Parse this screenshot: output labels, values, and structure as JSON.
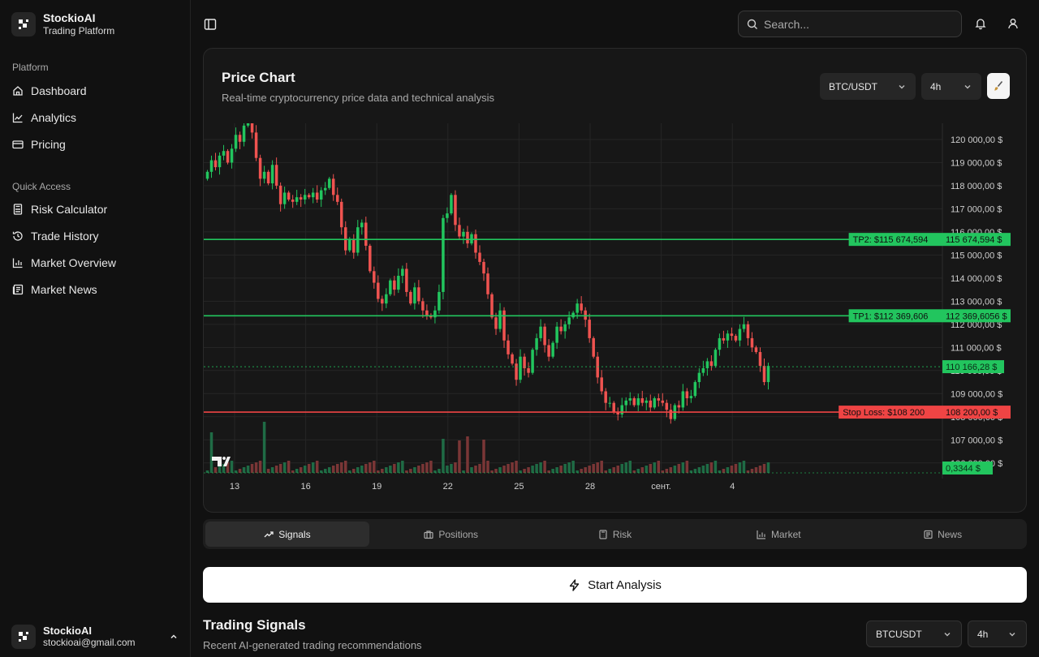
{
  "brand": {
    "name": "StockioAI",
    "subtitle": "Trading Platform"
  },
  "sidebar": {
    "platform_label": "Platform",
    "platform_items": [
      {
        "label": "Dashboard",
        "icon": "home-icon"
      },
      {
        "label": "Analytics",
        "icon": "line-chart-icon"
      },
      {
        "label": "Pricing",
        "icon": "credit-card-icon"
      }
    ],
    "quick_label": "Quick Access",
    "quick_items": [
      {
        "label": "Risk Calculator",
        "icon": "calculator-icon"
      },
      {
        "label": "Trade History",
        "icon": "history-icon"
      },
      {
        "label": "Market Overview",
        "icon": "bar-chart-icon"
      },
      {
        "label": "Market News",
        "icon": "newspaper-icon"
      }
    ],
    "user": {
      "name": "StockioAI",
      "email": "stockioai@gmail.com"
    }
  },
  "topbar": {
    "search_placeholder": "Search..."
  },
  "chart_card": {
    "title": "Price Chart",
    "subtitle": "Real-time cryptocurrency price data and technical analysis",
    "pair": "BTC/USDT",
    "interval": "4h"
  },
  "chart_data": {
    "type": "candlestick",
    "y_ticks": [
      "120 000,00 $",
      "119 000,00 $",
      "118 000,00 $",
      "117 000,00 $",
      "116 000,00 $",
      "115 000,00 $",
      "114 000,00 $",
      "113 000,00 $",
      "112 000,00 $",
      "111 000,00 $",
      "110 000,00 $",
      "109 000,00 $",
      "108 000,00 $",
      "107 000,00 $",
      "106 000,00 $"
    ],
    "y_tick_values": [
      120000,
      119000,
      118000,
      117000,
      116000,
      115000,
      114000,
      113000,
      112000,
      111000,
      110000,
      109000,
      108000,
      107000,
      106000
    ],
    "ylim": [
      105500,
      120700
    ],
    "x_ticks": [
      "13",
      "16",
      "19",
      "22",
      "25",
      "28",
      "сент.",
      "4"
    ],
    "closes": [
      118600,
      119100,
      118800,
      119300,
      119500,
      119000,
      119600,
      120200,
      119900,
      120600,
      121000,
      120300,
      119200,
      118300,
      118600,
      118100,
      118900,
      118000,
      117200,
      117700,
      117400,
      117300,
      117500,
      117400,
      117600,
      117500,
      117700,
      117400,
      117800,
      117900,
      118300,
      117600,
      117300,
      116200,
      115200,
      115700,
      115100,
      116200,
      116400,
      115400,
      114300,
      113800,
      113100,
      112900,
      113300,
      113900,
      113500,
      114100,
      114400,
      113400,
      112900,
      113600,
      113000,
      112600,
      112400,
      112300,
      112600,
      113400,
      116600,
      116800,
      117600,
      116300,
      115800,
      116000,
      115500,
      115900,
      115100,
      114700,
      114200,
      113300,
      112300,
      111800,
      112600,
      111300,
      110700,
      110300,
      109600,
      110600,
      110100,
      109900,
      110900,
      111400,
      111900,
      111100,
      110600,
      111200,
      111900,
      111700,
      112000,
      112300,
      112500,
      112900,
      112600,
      112200,
      111400,
      110600,
      109700,
      109100,
      108600,
      108600,
      108200,
      108100,
      108500,
      108700,
      108800,
      108500,
      108800,
      108600,
      108700,
      108400,
      108800,
      108700,
      108600,
      108300,
      107900,
      108500,
      108400,
      109100,
      108800,
      108900,
      109500,
      109900,
      110100,
      110400,
      110200,
      110900,
      111400,
      111300,
      111600,
      111500,
      111300,
      111800,
      112000,
      111400,
      111000,
      110800,
      110200,
      109500,
      110200
    ],
    "hlines": [
      {
        "label": "TP2: $115 674,594",
        "price_label": "115 674,594 $",
        "value": 115674.594,
        "color": "#22c55e"
      },
      {
        "label": "TP1: $112 369,606",
        "price_label": "112 369,6056 $",
        "value": 112369.6056,
        "color": "#22c55e"
      },
      {
        "label": "Stop Loss: $108 200",
        "price_label": "108 200,00 $",
        "value": 108200,
        "color": "#ef4444"
      }
    ],
    "last_price": {
      "label": "110 166,28 $",
      "value": 110166.28
    },
    "volume_label": "0,3344 $",
    "colors": {
      "up": "#22c55e",
      "down": "#ef5350",
      "grid": "#262626",
      "bg": "#171717"
    }
  },
  "tabs": [
    {
      "label": "Signals",
      "icon": "trending-up-icon",
      "active": true
    },
    {
      "label": "Positions",
      "icon": "briefcase-icon",
      "active": false
    },
    {
      "label": "Risk",
      "icon": "calculator-icon",
      "active": false
    },
    {
      "label": "Market",
      "icon": "bar-chart-icon",
      "active": false
    },
    {
      "label": "News",
      "icon": "newspaper-icon",
      "active": false
    }
  ],
  "start_button": "Start Analysis",
  "signals": {
    "title": "Trading Signals",
    "subtitle": "Recent AI-generated trading recommendations",
    "symbol": "BTCUSDT",
    "interval": "4h"
  }
}
